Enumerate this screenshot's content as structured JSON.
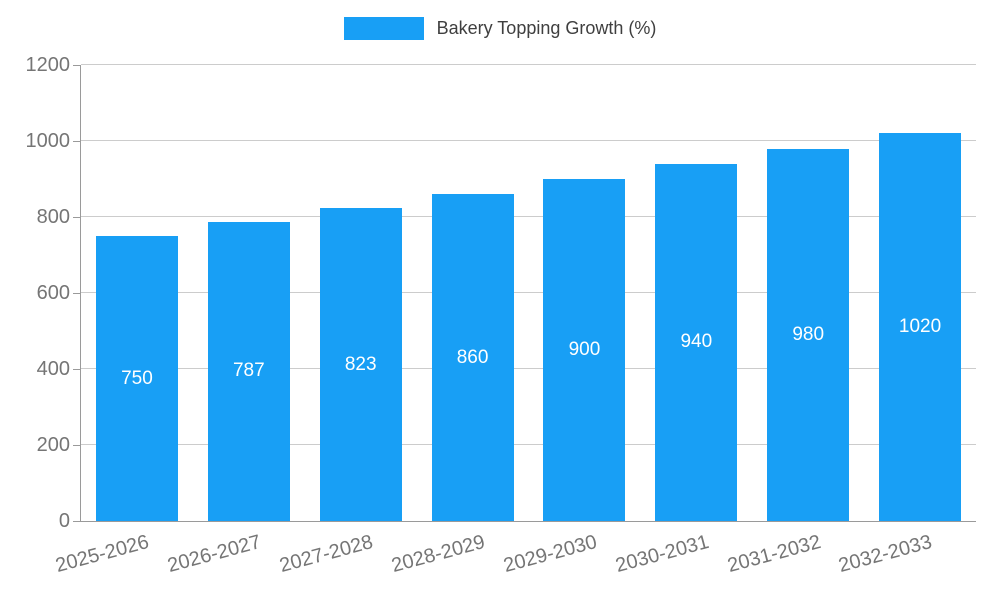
{
  "chart_data": {
    "type": "bar",
    "title": "Bakery Topping Growth (%)",
    "categories": [
      "2025-2026",
      "2026-2027",
      "2027-2028",
      "2028-2029",
      "2029-2030",
      "2030-2031",
      "2031-2032",
      "2032-2033"
    ],
    "values": [
      750,
      787,
      823,
      860,
      900,
      940,
      980,
      1020
    ],
    "xlabel": "",
    "ylabel": "",
    "ylim": [
      0,
      1200
    ],
    "ytick_step": 200,
    "yticks": [
      0,
      200,
      400,
      600,
      800,
      1000,
      1200
    ],
    "grid": true,
    "legend_position": "top",
    "bar_color": "#189ff5",
    "bar_label_color": "#ffffff",
    "axis_color": "#9a9a9a",
    "grid_color": "#cccccc",
    "tick_text_color": "#757575",
    "title_color": "#3f3f3f"
  }
}
